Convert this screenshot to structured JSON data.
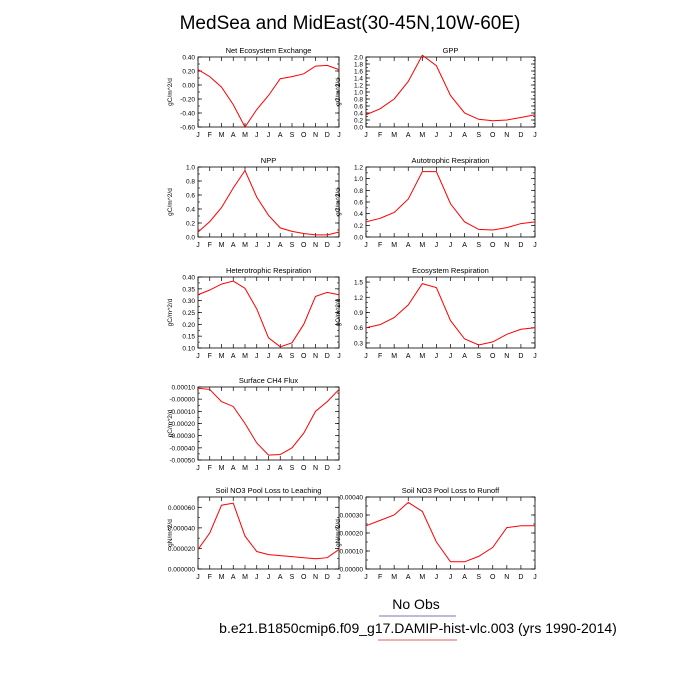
{
  "figure": {
    "title": "MedSea and MidEast(30-45N,10W-60E)",
    "legend_label": "No Obs",
    "case_label": "b.e21.B1850cmip6.f09_g17.DAMIP-hist-vlc.003 (yrs 1990-2014)",
    "line_color": "#ff0000",
    "legend_line_color_top": "#7a7aa8",
    "legend_line_color_bottom": "#e06060"
  },
  "chart_data": [
    {
      "type": "line",
      "title": "Net Ecosystem Exchange",
      "ylabel": "gC/m^2/d",
      "categories": [
        "J",
        "F",
        "M",
        "A",
        "M",
        "J",
        "J",
        "A",
        "S",
        "O",
        "N",
        "D",
        "J"
      ],
      "values": [
        0.22,
        0.12,
        -0.03,
        -0.28,
        -0.6,
        -0.35,
        -0.15,
        0.09,
        0.12,
        0.16,
        0.27,
        0.28,
        0.22
      ],
      "ylim": [
        -0.6,
        0.4
      ],
      "yticks": [
        "-0.60",
        "-0.40",
        "-0.20",
        "0.00",
        "0.20",
        "0.40"
      ],
      "ytick_values": [
        -0.6,
        -0.4,
        -0.2,
        0.0,
        0.2,
        0.4
      ],
      "minor_step": 0.1
    },
    {
      "type": "line",
      "title": "GPP",
      "ylabel": "gC/m^2/d",
      "categories": [
        "J",
        "F",
        "M",
        "A",
        "M",
        "J",
        "J",
        "A",
        "S",
        "O",
        "N",
        "D",
        "J"
      ],
      "values": [
        0.35,
        0.52,
        0.8,
        1.3,
        2.05,
        1.75,
        0.9,
        0.4,
        0.22,
        0.18,
        0.2,
        0.27,
        0.35
      ],
      "ylim": [
        0.0,
        2.0
      ],
      "yticks": [
        "0.0",
        "0.2",
        "0.4",
        "0.6",
        "0.8",
        "1.0",
        "1.2",
        "1.4",
        "1.6",
        "1.8",
        "2.0"
      ],
      "ytick_values": [
        0.0,
        0.2,
        0.4,
        0.6,
        0.8,
        1.0,
        1.2,
        1.4,
        1.6,
        1.8,
        2.0
      ],
      "minor_step": 0.1
    },
    {
      "type": "line",
      "title": "NPP",
      "ylabel": "gC/m^2/d",
      "categories": [
        "J",
        "F",
        "M",
        "A",
        "M",
        "J",
        "J",
        "A",
        "S",
        "O",
        "N",
        "D",
        "J"
      ],
      "values": [
        0.07,
        0.22,
        0.42,
        0.7,
        0.95,
        0.57,
        0.31,
        0.13,
        0.08,
        0.05,
        0.03,
        0.03,
        0.07
      ],
      "ylim": [
        0.0,
        1.0
      ],
      "yticks": [
        "0.0",
        "0.2",
        "0.4",
        "0.6",
        "0.8",
        "1.0"
      ],
      "ytick_values": [
        0.0,
        0.2,
        0.4,
        0.6,
        0.8,
        1.0
      ],
      "minor_step": 0.1
    },
    {
      "type": "line",
      "title": "Autotrophic Respiration",
      "ylabel": "gC/m^2/d",
      "categories": [
        "J",
        "F",
        "M",
        "A",
        "M",
        "J",
        "J",
        "A",
        "S",
        "O",
        "N",
        "D",
        "J"
      ],
      "values": [
        0.26,
        0.32,
        0.42,
        0.65,
        1.12,
        1.12,
        0.57,
        0.26,
        0.13,
        0.12,
        0.16,
        0.23,
        0.26
      ],
      "ylim": [
        0.0,
        1.2
      ],
      "yticks": [
        "0.0",
        "0.2",
        "0.4",
        "0.6",
        "0.8",
        "1.0",
        "1.2"
      ],
      "ytick_values": [
        0.0,
        0.2,
        0.4,
        0.6,
        0.8,
        1.0,
        1.2
      ],
      "minor_step": 0.1
    },
    {
      "type": "line",
      "title": "Heterotrophic Respiration",
      "ylabel": "gC/m^2/d",
      "categories": [
        "J",
        "F",
        "M",
        "A",
        "M",
        "J",
        "J",
        "A",
        "S",
        "O",
        "N",
        "D",
        "J"
      ],
      "values": [
        0.325,
        0.345,
        0.37,
        0.383,
        0.352,
        0.265,
        0.143,
        0.105,
        0.122,
        0.2,
        0.318,
        0.335,
        0.325
      ],
      "ylim": [
        0.1,
        0.4
      ],
      "yticks": [
        "0.10",
        "0.15",
        "0.20",
        "0.25",
        "0.30",
        "0.35",
        "0.40"
      ],
      "ytick_values": [
        0.1,
        0.15,
        0.2,
        0.25,
        0.3,
        0.35,
        0.4
      ],
      "minor_step": 0.025
    },
    {
      "type": "line",
      "title": "Ecosystem Respiration",
      "ylabel": "gC/m^2/d",
      "categories": [
        "J",
        "F",
        "M",
        "A",
        "M",
        "J",
        "J",
        "A",
        "S",
        "O",
        "N",
        "D",
        "J"
      ],
      "values": [
        0.6,
        0.66,
        0.8,
        1.05,
        1.47,
        1.39,
        0.74,
        0.38,
        0.26,
        0.32,
        0.47,
        0.57,
        0.6
      ],
      "ylim": [
        0.2,
        1.6
      ],
      "yticks": [
        "0.3",
        "0.6",
        "0.9",
        "1.2",
        "1.5"
      ],
      "ytick_values": [
        0.3,
        0.6,
        0.9,
        1.2,
        1.5
      ],
      "minor_step": 0.1
    },
    {
      "type": "line",
      "title": "Surface CH4 Flux",
      "ylabel": "gC/m^2/d",
      "categories": [
        "J",
        "F",
        "M",
        "A",
        "M",
        "J",
        "J",
        "A",
        "S",
        "O",
        "N",
        "D",
        "J"
      ],
      "values": [
        9e-05,
        8e-05,
        -2e-05,
        -6e-05,
        -0.0002,
        -0.00036,
        -0.00046,
        -0.000455,
        -0.0004,
        -0.00028,
        -0.0001,
        -2e-05,
        8e-05
      ],
      "ylim": [
        -0.0005,
        0.0001
      ],
      "yticks": [
        "-0.00050",
        "-0.00040",
        "-0.00030",
        "-0.00020",
        "-0.00010",
        "-0.00000",
        "0.00010"
      ],
      "ytick_values": [
        -0.0005,
        -0.0004,
        -0.0003,
        -0.0002,
        -0.0001,
        0.0,
        0.0001
      ],
      "minor_step": 5e-05
    },
    {
      "type": "line",
      "title": "Soil NO3 Pool Loss to Leaching",
      "ylabel": "gN/m^2/d",
      "categories": [
        "J",
        "F",
        "M",
        "A",
        "M",
        "J",
        "J",
        "A",
        "S",
        "O",
        "N",
        "D",
        "J"
      ],
      "values": [
        1.9e-05,
        3.5e-05,
        6.2e-05,
        6.4e-05,
        3.2e-05,
        1.7e-05,
        1.4e-05,
        1.3e-05,
        1.2e-05,
        1.1e-05,
        1e-05,
        1.1e-05,
        1.9e-05
      ],
      "ylim": [
        0.0,
        7e-05
      ],
      "yticks": [
        "0.000000",
        "0.000020",
        "0.000040",
        "0.000060"
      ],
      "ytick_values": [
        0.0,
        2e-05,
        4e-05,
        6e-05
      ],
      "minor_step": 1e-05
    },
    {
      "type": "line",
      "title": "Soil NO3 Pool Loss to Runoff",
      "ylabel": "gN/m^2/d",
      "categories": [
        "J",
        "F",
        "M",
        "A",
        "M",
        "J",
        "J",
        "A",
        "S",
        "O",
        "N",
        "D",
        "J"
      ],
      "values": [
        0.00024,
        0.00027,
        0.0003,
        0.00037,
        0.00032,
        0.00015,
        4e-05,
        4e-05,
        7e-05,
        0.00012,
        0.00023,
        0.00024,
        0.00024
      ],
      "ylim": [
        0.0,
        0.0004
      ],
      "yticks": [
        "0.00000",
        "0.00010",
        "0.00020",
        "0.00030",
        "0.00040"
      ],
      "ytick_values": [
        0.0,
        0.0001,
        0.0002,
        0.0003,
        0.0004
      ],
      "minor_step": 5e-05
    }
  ]
}
